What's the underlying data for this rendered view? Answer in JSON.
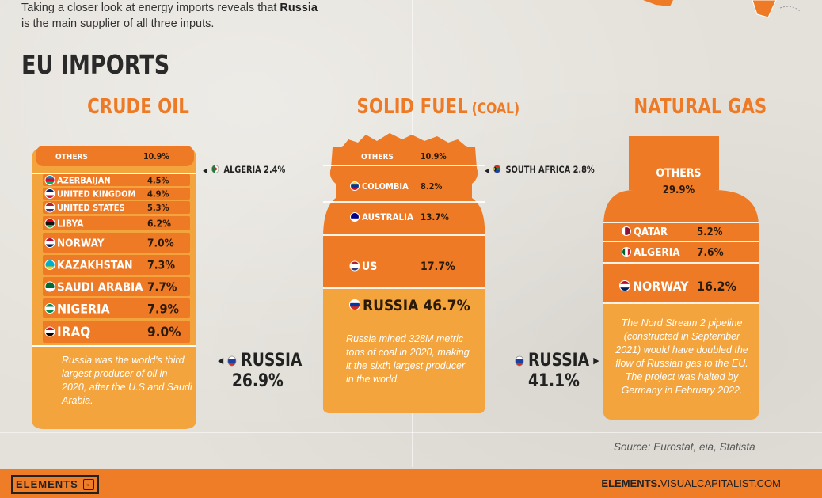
{
  "intro": {
    "line1_pre": "Taking a closer look at energy imports reveals that ",
    "line1_bold": "Russia",
    "line2": "is the main supplier of all three inputs."
  },
  "title": "EU IMPORTS",
  "colors": {
    "orange": "#ee7a25",
    "dark_orange": "#e0661d",
    "light_orange": "#f4a43c",
    "text_dark": "#222222"
  },
  "chart_data": [
    {
      "type": "bar",
      "title": "CRUDE OIL",
      "categories": [
        "OTHERS",
        "AZERBAIJAN",
        "UNITED KINGDOM",
        "UNITED STATES",
        "LIBYA",
        "NORWAY",
        "KAZAKHSTAN",
        "SAUDI ARABIA",
        "NIGERIA",
        "IRAQ",
        "RUSSIA",
        "ALGERIA"
      ],
      "values": [
        10.9,
        4.5,
        4.9,
        5.3,
        6.2,
        7.0,
        7.3,
        7.7,
        7.9,
        9.0,
        26.9,
        2.4
      ],
      "labels": [
        "10.9%",
        "4.5%",
        "4.9%",
        "5.3%",
        "6.2%",
        "7.0%",
        "7.3%",
        "7.7%",
        "7.9%",
        "9.0%",
        "26.9%",
        "2.4%"
      ],
      "callouts": {
        "russia": "RUSSIA",
        "russia_value": "26.9%",
        "algeria": "ALGERIA 2.4%"
      },
      "note": "Russia was the world's third largest producer of oil in 2020, after the U.S and Saudi Arabia."
    },
    {
      "type": "bar",
      "title": "SOLID FUEL",
      "subtitle": "(COAL)",
      "categories": [
        "OTHERS",
        "COLOMBIA",
        "AUSTRALIA",
        "US",
        "RUSSIA",
        "SOUTH AFRICA"
      ],
      "values": [
        10.9,
        8.2,
        13.7,
        17.7,
        46.7,
        2.8
      ],
      "labels": [
        "10.9%",
        "8.2%",
        "13.7%",
        "17.7%",
        "46.7%",
        "2.8%"
      ],
      "callouts": {
        "south_africa": "SOUTH AFRICA 2.8%",
        "russia_inline": "RUSSIA 46.7%"
      },
      "note": "Russia mined 328M metric tons of coal in 2020, making it the sixth largest producer in the world."
    },
    {
      "type": "bar",
      "title": "NATURAL GAS",
      "categories": [
        "OTHERS",
        "QATAR",
        "ALGERIA",
        "NORWAY",
        "RUSSIA"
      ],
      "values": [
        29.9,
        5.2,
        7.6,
        16.2,
        41.1
      ],
      "labels": [
        "29.9%",
        "5.2%",
        "7.6%",
        "16.2%",
        "41.1%"
      ],
      "callouts": {
        "russia": "RUSSIA",
        "russia_value": "41.1%"
      },
      "note": "The Nord Stream 2 pipeline (constructed in September 2021) would have doubled the flow of Russian gas to the EU. The project was halted by Germany in February 2022."
    }
  ],
  "source": "Source: Eurostat, eia, Statista",
  "footer": {
    "left": "ELEMENTS",
    "right_bold": "ELEMENTS.",
    "right_rest": "VISUALCAPITALIST.COM"
  }
}
